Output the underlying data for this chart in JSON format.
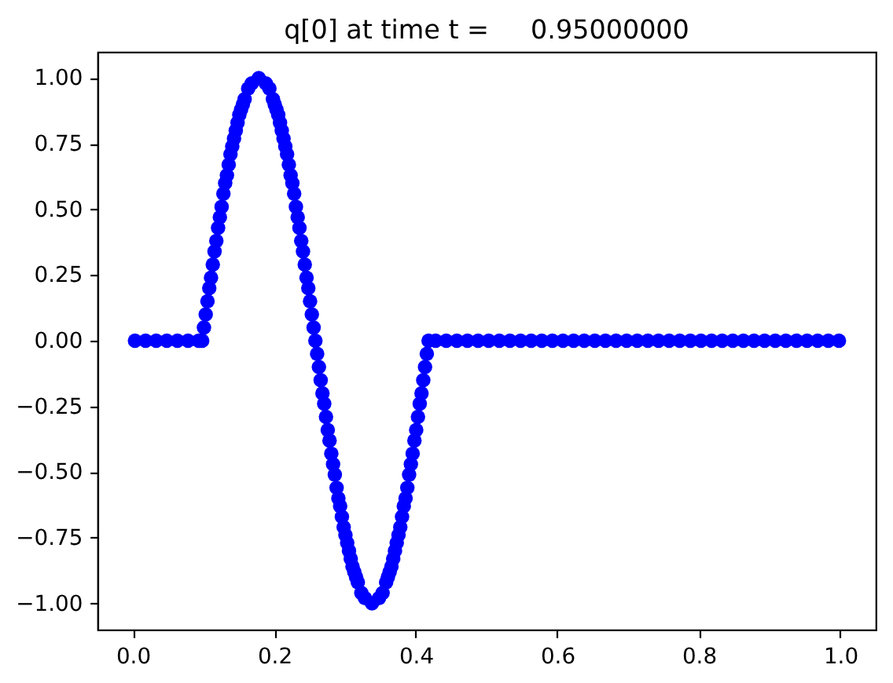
{
  "chart_data": {
    "type": "scatter",
    "title": "q[0] at time t =     0.95000000",
    "x": [
      0.003,
      0.018,
      0.033,
      0.048,
      0.063,
      0.078,
      0.093,
      0.098,
      0.1005,
      0.103,
      0.1055,
      0.108,
      0.1105,
      0.113,
      0.1155,
      0.118,
      0.1205,
      0.123,
      0.1255,
      0.128,
      0.1305,
      0.133,
      0.1355,
      0.138,
      0.1405,
      0.143,
      0.1455,
      0.148,
      0.1505,
      0.153,
      0.1555,
      0.158,
      0.163,
      0.168,
      0.178,
      0.188,
      0.193,
      0.198,
      0.2005,
      0.203,
      0.2055,
      0.208,
      0.2105,
      0.213,
      0.2155,
      0.218,
      0.2205,
      0.223,
      0.2255,
      0.228,
      0.2305,
      0.233,
      0.2355,
      0.238,
      0.2405,
      0.243,
      0.2455,
      0.248,
      0.2505,
      0.253,
      0.2555,
      0.258,
      0.2605,
      0.263,
      0.2655,
      0.268,
      0.2705,
      0.273,
      0.2755,
      0.278,
      0.2805,
      0.283,
      0.2855,
      0.288,
      0.2905,
      0.293,
      0.2955,
      0.298,
      0.3005,
      0.303,
      0.3055,
      0.308,
      0.3105,
      0.313,
      0.3155,
      0.318,
      0.323,
      0.328,
      0.338,
      0.348,
      0.353,
      0.358,
      0.3605,
      0.363,
      0.3655,
      0.368,
      0.3705,
      0.373,
      0.3755,
      0.378,
      0.3805,
      0.383,
      0.3855,
      0.388,
      0.3905,
      0.393,
      0.3955,
      0.398,
      0.4005,
      0.403,
      0.4055,
      0.408,
      0.4105,
      0.413,
      0.4155,
      0.418,
      0.428,
      0.443,
      0.458,
      0.473,
      0.488,
      0.503,
      0.518,
      0.533,
      0.548,
      0.563,
      0.578,
      0.593,
      0.608,
      0.623,
      0.638,
      0.653,
      0.668,
      0.683,
      0.698,
      0.713,
      0.728,
      0.743,
      0.758,
      0.773,
      0.788,
      0.803,
      0.818,
      0.833,
      0.848,
      0.863,
      0.878,
      0.893,
      0.908,
      0.923,
      0.938,
      0.953,
      0.968,
      0.983,
      0.998
    ],
    "values": [
      0,
      0,
      0,
      0,
      0,
      0,
      0,
      0,
      0.05,
      0.1,
      0.15,
      0.2,
      0.24,
      0.29,
      0.34,
      0.38,
      0.43,
      0.47,
      0.51,
      0.56,
      0.6,
      0.63,
      0.67,
      0.71,
      0.74,
      0.77,
      0.8,
      0.83,
      0.86,
      0.88,
      0.9,
      0.92,
      0.96,
      0.98,
      1,
      0.98,
      0.96,
      0.92,
      0.9,
      0.88,
      0.86,
      0.83,
      0.8,
      0.77,
      0.74,
      0.71,
      0.67,
      0.63,
      0.6,
      0.56,
      0.51,
      0.47,
      0.43,
      0.38,
      0.34,
      0.29,
      0.24,
      0.2,
      0.15,
      0.1,
      0.05,
      0,
      -0.05,
      -0.1,
      -0.15,
      -0.2,
      -0.24,
      -0.29,
      -0.34,
      -0.38,
      -0.43,
      -0.47,
      -0.51,
      -0.56,
      -0.6,
      -0.63,
      -0.67,
      -0.71,
      -0.74,
      -0.77,
      -0.8,
      -0.83,
      -0.86,
      -0.88,
      -0.9,
      -0.92,
      -0.96,
      -0.98,
      -1,
      -0.98,
      -0.96,
      -0.92,
      -0.9,
      -0.88,
      -0.86,
      -0.83,
      -0.8,
      -0.77,
      -0.74,
      -0.71,
      -0.67,
      -0.63,
      -0.6,
      -0.56,
      -0.51,
      -0.47,
      -0.43,
      -0.38,
      -0.34,
      -0.29,
      -0.24,
      -0.2,
      -0.15,
      -0.1,
      -0.05,
      0,
      0,
      0,
      0,
      0,
      0,
      0,
      0,
      0,
      0,
      0,
      0,
      0,
      0,
      0,
      0,
      0,
      0,
      0,
      0,
      0,
      0,
      0,
      0,
      0,
      0,
      0,
      0,
      0,
      0,
      0,
      0,
      0,
      0,
      0,
      0,
      0,
      0,
      0,
      0
    ],
    "color": "#0000ff",
    "marker": "circle",
    "grid": false,
    "xlim": [
      -0.05,
      1.05
    ],
    "ylim": [
      -1.1,
      1.1
    ],
    "xticks": [
      {
        "value": 0,
        "label": "0.0"
      },
      {
        "value": 0.2,
        "label": "0.2"
      },
      {
        "value": 0.4,
        "label": "0.4"
      },
      {
        "value": 0.6,
        "label": "0.6"
      },
      {
        "value": 0.8,
        "label": "0.8"
      },
      {
        "value": 1,
        "label": "1.0"
      }
    ],
    "yticks": [
      {
        "value": -1,
        "label": "−1.00"
      },
      {
        "value": -0.75,
        "label": "−0.75"
      },
      {
        "value": -0.5,
        "label": "−0.50"
      },
      {
        "value": -0.25,
        "label": "−0.25"
      },
      {
        "value": 0,
        "label": "0.00"
      },
      {
        "value": 0.25,
        "label": "0.25"
      },
      {
        "value": 0.5,
        "label": "0.50"
      },
      {
        "value": 0.75,
        "label": "0.75"
      },
      {
        "value": 1,
        "label": "1.00"
      }
    ]
  }
}
